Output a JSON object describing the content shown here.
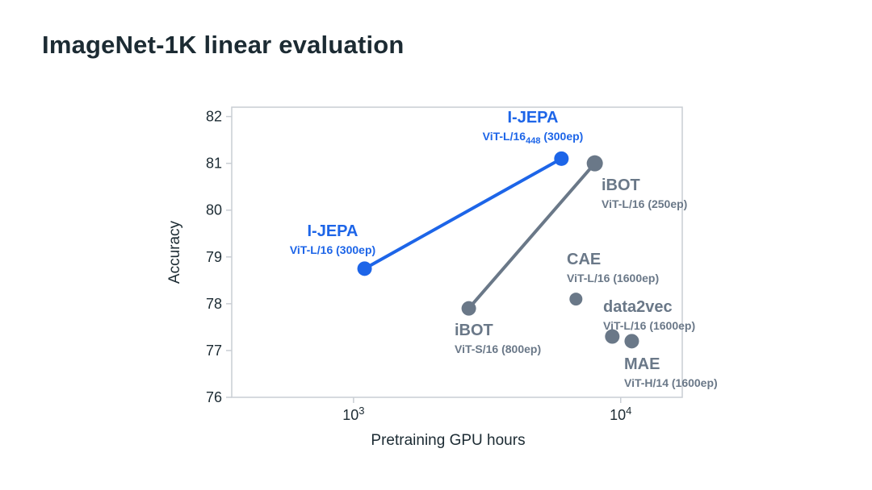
{
  "page": {
    "background": "#ffffff"
  },
  "chart_data": {
    "type": "scatter",
    "title": "ImageNet-1K linear evaluation",
    "xlabel": "Pretraining GPU hours",
    "ylabel": "Accuracy",
    "x_scale": "log",
    "xlim": [
      350,
      17000
    ],
    "ylim": [
      76,
      82.2
    ],
    "y_ticks": [
      82,
      81,
      80,
      79,
      78,
      77,
      76
    ],
    "x_ticks": [
      {
        "value": 1000,
        "base": "10",
        "exp": "3"
      },
      {
        "value": 10000,
        "base": "10",
        "exp": "4"
      }
    ],
    "grid": false,
    "legend": "none",
    "colors": {
      "accent": "#1d65e8",
      "muted": "#6a7888",
      "axis_text": "#1c2b33",
      "border": "#c9ced4",
      "background": "#ffffff"
    },
    "series": [
      {
        "name": "I-JEPA",
        "color_key": "accent",
        "line": true,
        "line_width": 4,
        "points": [
          {
            "x": 1100,
            "y": 78.75,
            "r": 9,
            "label": "I-JEPA",
            "sublabel_parts": [
              {
                "text": "ViT-L/16 (300ep)"
              }
            ],
            "label_x": 412,
            "label_y": 293,
            "anchor": "middle"
          },
          {
            "x": 6000,
            "y": 81.1,
            "r": 9,
            "label": "I-JEPA",
            "sublabel_parts": [
              {
                "text": "ViT-L/16"
              },
              {
                "text": "448",
                "sub": true
              },
              {
                "text": " (300ep)"
              }
            ],
            "label_x": 660,
            "label_y": 152,
            "anchor": "middle"
          }
        ]
      },
      {
        "name": "iBOT",
        "color_key": "muted",
        "line": true,
        "line_width": 4,
        "points": [
          {
            "x": 2700,
            "y": 77.9,
            "r": 9,
            "label": "iBOT",
            "sublabel_parts": [
              {
                "text": "ViT-S/16 (800ep)"
              }
            ],
            "label_x": 563,
            "label_y": 416,
            "anchor": "start"
          },
          {
            "x": 8000,
            "y": 81.0,
            "r": 10,
            "label": "iBOT",
            "sublabel_parts": [
              {
                "text": "ViT-L/16 (250ep)"
              }
            ],
            "label_x": 745,
            "label_y": 236,
            "anchor": "start"
          }
        ]
      },
      {
        "name": "CAE",
        "color_key": "muted",
        "line": false,
        "points": [
          {
            "x": 6800,
            "y": 78.1,
            "r": 8,
            "label": "CAE",
            "sublabel_parts": [
              {
                "text": "ViT-L/16 (1600ep)"
              }
            ],
            "label_x": 702,
            "label_y": 328,
            "anchor": "start"
          }
        ]
      },
      {
        "name": "data2vec",
        "color_key": "muted",
        "line": false,
        "points": [
          {
            "x": 9300,
            "y": 77.3,
            "r": 9,
            "label": "data2vec",
            "sublabel_parts": [
              {
                "text": "ViT-L/16 (1600ep)"
              }
            ],
            "label_x": 747,
            "label_y": 387,
            "anchor": "start"
          }
        ]
      },
      {
        "name": "MAE",
        "color_key": "muted",
        "line": false,
        "points": [
          {
            "x": 11000,
            "y": 77.2,
            "r": 9,
            "label": "MAE",
            "sublabel_parts": [
              {
                "text": "ViT-H/14 (1600ep)"
              }
            ],
            "label_x": 773,
            "label_y": 458,
            "anchor": "start"
          }
        ]
      }
    ]
  }
}
